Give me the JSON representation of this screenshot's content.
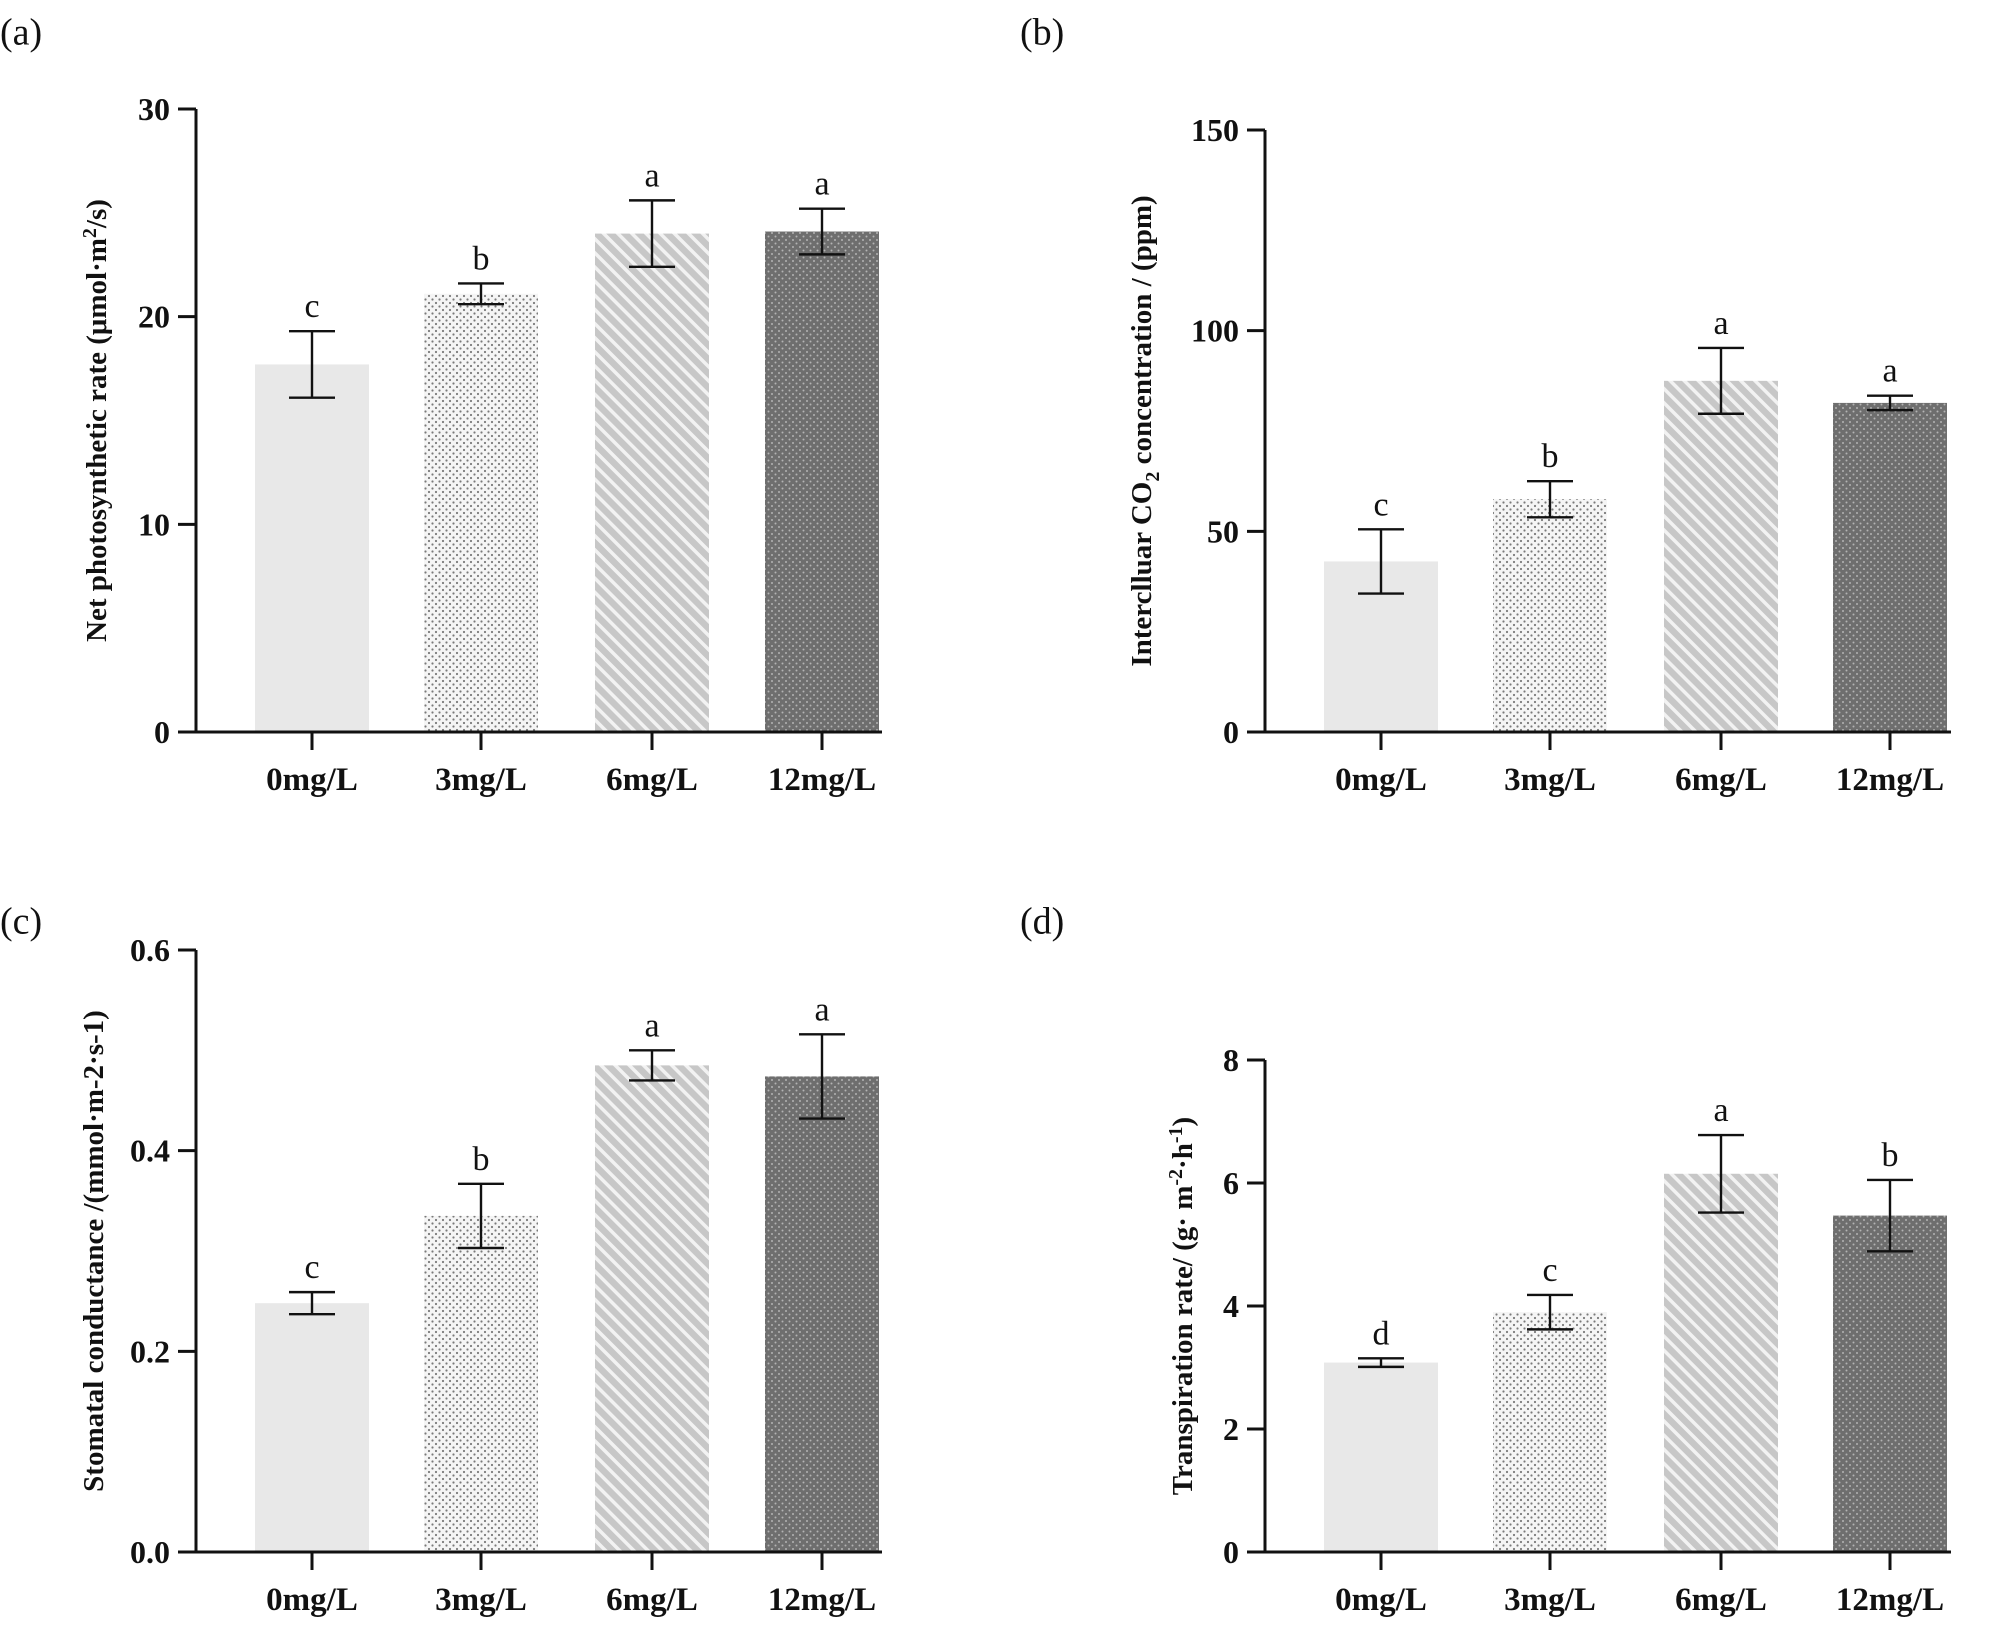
{
  "figure": {
    "colors": {
      "bar_0": "#e8e8e8",
      "bar_3_dots": "#7a7a7a",
      "bar_6_stripes": "#b9b9b9",
      "bar_12": "#6e6e6e",
      "axis": "#111111"
    }
  },
  "chart_data": [
    {
      "type": "bar",
      "panel_label": "(a)",
      "categories": [
        "0mg/L",
        "3mg/L",
        "6mg/L",
        "12mg/L"
      ],
      "values": [
        17.7,
        21.1,
        24.0,
        24.1
      ],
      "errors": [
        1.6,
        0.5,
        1.6,
        1.1
      ],
      "significance": [
        "c",
        "b",
        "a",
        "a"
      ],
      "ylabel_main": "Net photosynthetic rate (μmol·m",
      "ylabel_sup": "2",
      "ylabel_tail": "/s)",
      "ylim": [
        0,
        30
      ],
      "yticks": [
        "0",
        "10",
        "20",
        "30"
      ],
      "grid": false
    },
    {
      "type": "bar",
      "panel_label": "(b)",
      "categories": [
        "0mg/L",
        "3mg/L",
        "6mg/L",
        "12mg/L"
      ],
      "values": [
        42.5,
        58.0,
        87.5,
        82.0
      ],
      "errors": [
        8.0,
        4.5,
        8.2,
        1.8
      ],
      "significance": [
        "c",
        "b",
        "a",
        "a"
      ],
      "ylabel_main": "Interclluar CO",
      "ylabel_sub": "2",
      "ylabel_tail": " concentration / (ppm)",
      "ylim": [
        0,
        150
      ],
      "yticks": [
        "0",
        "50",
        "100",
        "150"
      ],
      "grid": false
    },
    {
      "type": "bar",
      "panel_label": "(c)",
      "categories": [
        "0mg/L",
        "3mg/L",
        "6mg/L",
        "12mg/L"
      ],
      "values": [
        0.248,
        0.335,
        0.485,
        0.474
      ],
      "errors": [
        0.011,
        0.032,
        0.015,
        0.042
      ],
      "significance": [
        "c",
        "b",
        "a",
        "a"
      ],
      "ylabel_main": "Stomatal conductance /(mmol·m-2·s-1)",
      "ylim": [
        0,
        0.6
      ],
      "yticks": [
        "0.0",
        "0.2",
        "0.4",
        "0.6"
      ],
      "grid": false
    },
    {
      "type": "bar",
      "panel_label": "(d)",
      "categories": [
        "0mg/L",
        "3mg/L",
        "6mg/L",
        "12mg/L"
      ],
      "values": [
        3.08,
        3.9,
        6.15,
        5.47
      ],
      "errors": [
        0.07,
        0.28,
        0.63,
        0.58
      ],
      "significance": [
        "d",
        "c",
        "a",
        "b"
      ],
      "ylabel_main": "Transpiration rate/  (g· m",
      "ylabel_sup": "-2",
      "ylabel_mid": "·h",
      "ylabel_sup2": "-1",
      "ylabel_tail": ")",
      "ylim": [
        0,
        8
      ],
      "yticks": [
        "0",
        "2",
        "4",
        "6",
        "8"
      ],
      "grid": false
    }
  ]
}
